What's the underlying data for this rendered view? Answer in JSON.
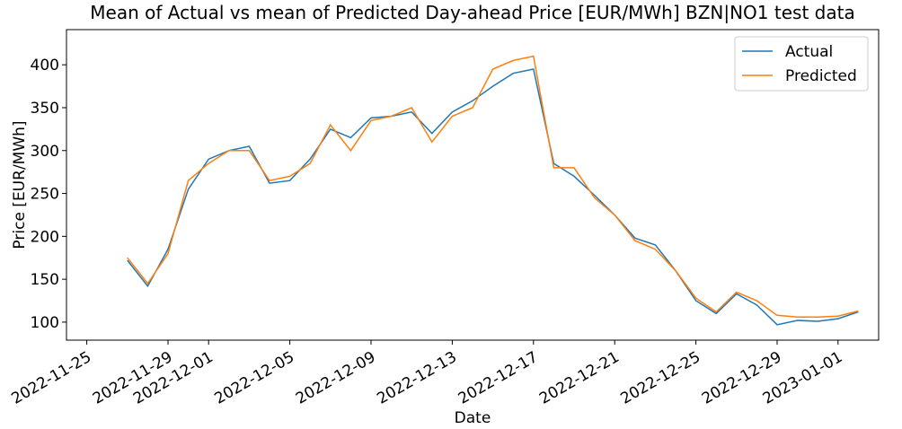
{
  "chart_data": {
    "type": "line",
    "title": "Mean of Actual vs mean of Predicted Day-ahead Price [EUR/MWh] BZN|NO1 test data",
    "x_label": "Date",
    "y_label": "Price [EUR/MWh]",
    "x": [
      "2022-11-27",
      "2022-11-28",
      "2022-11-29",
      "2022-11-30",
      "2022-12-01",
      "2022-12-02",
      "2022-12-03",
      "2022-12-04",
      "2022-12-05",
      "2022-12-06",
      "2022-12-07",
      "2022-12-08",
      "2022-12-09",
      "2022-12-10",
      "2022-12-11",
      "2022-12-12",
      "2022-12-13",
      "2022-12-14",
      "2022-12-15",
      "2022-12-16",
      "2022-12-17",
      "2022-12-18",
      "2022-12-19",
      "2022-12-20",
      "2022-12-21",
      "2022-12-22",
      "2022-12-23",
      "2022-12-24",
      "2022-12-25",
      "2022-12-26",
      "2022-12-27",
      "2022-12-28",
      "2022-12-29",
      "2022-12-30",
      "2022-12-31",
      "2023-01-01",
      "2023-01-02"
    ],
    "series": [
      {
        "name": "Actual",
        "color": "#1f77b4",
        "values": [
          172,
          142,
          185,
          255,
          290,
          300,
          305,
          262,
          265,
          290,
          325,
          315,
          338,
          340,
          345,
          320,
          345,
          358,
          375,
          390,
          395,
          285,
          270,
          248,
          225,
          198,
          190,
          160,
          125,
          110,
          133,
          120,
          97,
          102,
          101,
          104,
          112
        ]
      },
      {
        "name": "Predicted",
        "color": "#ff7f0e",
        "values": [
          175,
          145,
          180,
          265,
          285,
          300,
          300,
          265,
          270,
          285,
          330,
          300,
          335,
          340,
          350,
          310,
          340,
          350,
          395,
          405,
          410,
          280,
          280,
          245,
          225,
          195,
          185,
          160,
          128,
          112,
          135,
          125,
          108,
          106,
          106,
          107,
          113
        ]
      }
    ],
    "xlim": [
      "2022-11-24",
      "2023-01-03"
    ],
    "xticks": [
      "2022-11-25",
      "2022-11-29",
      "2022-12-01",
      "2022-12-05",
      "2022-12-09",
      "2022-12-13",
      "2022-12-17",
      "2022-12-21",
      "2022-12-25",
      "2022-12-29",
      "2023-01-01"
    ],
    "ylim": [
      79,
      441
    ],
    "yticks": [
      100,
      150,
      200,
      250,
      300,
      350,
      400
    ],
    "legend": "upper right"
  }
}
